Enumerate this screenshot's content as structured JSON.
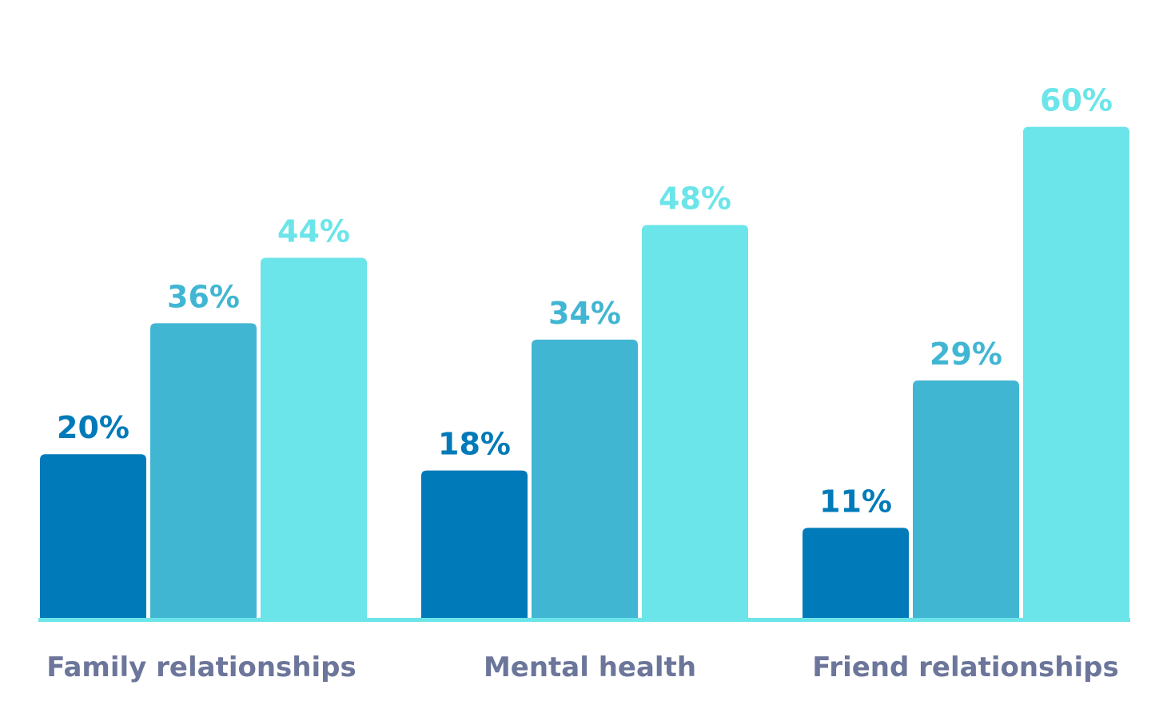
{
  "chart_data": {
    "type": "bar",
    "title": "",
    "xlabel": "",
    "ylabel": "",
    "categories": [
      "Family relationships",
      "Mental health",
      "Friend relationships"
    ],
    "series": [
      {
        "values": [
          20,
          18,
          11
        ],
        "labels": [
          "20%",
          "18%",
          "11%"
        ],
        "color": "#007ab8"
      },
      {
        "values": [
          36,
          34,
          29
        ],
        "labels": [
          "36%",
          "34%",
          "29%"
        ],
        "color": "#41b6d3"
      },
      {
        "values": [
          44,
          48,
          60
        ],
        "labels": [
          "44%",
          "48%",
          "60%"
        ],
        "color": "#6be5e9"
      }
    ],
    "ylim": [
      0,
      60
    ],
    "grid": false,
    "legend": "none",
    "baseline_color": "#6be5e9",
    "category_label_color": "#6c759a"
  }
}
